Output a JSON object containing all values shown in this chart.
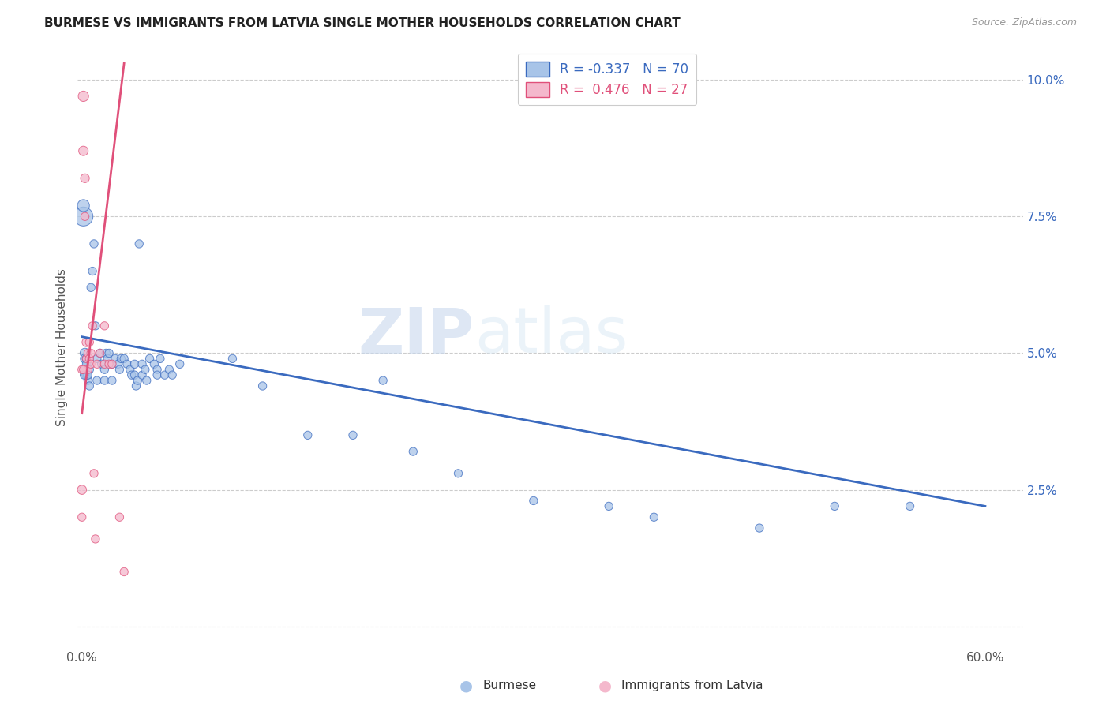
{
  "title": "BURMESE VS IMMIGRANTS FROM LATVIA SINGLE MOTHER HOUSEHOLDS CORRELATION CHART",
  "source": "Source: ZipAtlas.com",
  "ylabel": "Single Mother Households",
  "blue_color": "#a8c4e8",
  "pink_color": "#f4b8cc",
  "blue_line_color": "#3a6abf",
  "pink_line_color": "#e0507a",
  "watermark_zip": "ZIP",
  "watermark_atlas": "atlas",
  "blue_x": [
    0.001,
    0.001,
    0.002,
    0.002,
    0.002,
    0.003,
    0.003,
    0.003,
    0.004,
    0.004,
    0.005,
    0.005,
    0.006,
    0.007,
    0.008,
    0.009,
    0.01,
    0.01,
    0.012,
    0.013,
    0.015,
    0.015,
    0.016,
    0.017,
    0.018,
    0.02,
    0.02,
    0.022,
    0.024,
    0.025,
    0.026,
    0.028,
    0.03,
    0.032,
    0.033,
    0.035,
    0.035,
    0.036,
    0.037,
    0.038,
    0.04,
    0.04,
    0.042,
    0.043,
    0.045,
    0.048,
    0.05,
    0.05,
    0.052,
    0.055,
    0.058,
    0.06,
    0.065,
    0.1,
    0.12,
    0.15,
    0.18,
    0.2,
    0.22,
    0.25,
    0.3,
    0.35,
    0.38,
    0.45,
    0.5,
    0.55,
    0.0025,
    0.0035,
    0.004,
    0.0015
  ],
  "blue_y": [
    0.075,
    0.077,
    0.05,
    0.049,
    0.047,
    0.049,
    0.048,
    0.046,
    0.048,
    0.045,
    0.047,
    0.044,
    0.062,
    0.065,
    0.07,
    0.055,
    0.049,
    0.045,
    0.05,
    0.048,
    0.047,
    0.045,
    0.05,
    0.049,
    0.05,
    0.048,
    0.045,
    0.049,
    0.048,
    0.047,
    0.049,
    0.049,
    0.048,
    0.047,
    0.046,
    0.048,
    0.046,
    0.044,
    0.045,
    0.07,
    0.048,
    0.046,
    0.047,
    0.045,
    0.049,
    0.048,
    0.047,
    0.046,
    0.049,
    0.046,
    0.047,
    0.046,
    0.048,
    0.049,
    0.044,
    0.035,
    0.035,
    0.045,
    0.032,
    0.028,
    0.023,
    0.022,
    0.02,
    0.018,
    0.022,
    0.022,
    0.046,
    0.046,
    0.046,
    0.046
  ],
  "blue_sizes": [
    300,
    120,
    80,
    70,
    60,
    60,
    55,
    55,
    55,
    55,
    55,
    55,
    55,
    55,
    55,
    55,
    55,
    55,
    55,
    55,
    55,
    55,
    55,
    55,
    55,
    55,
    55,
    55,
    55,
    55,
    55,
    55,
    55,
    55,
    55,
    55,
    55,
    55,
    55,
    55,
    55,
    55,
    55,
    55,
    55,
    55,
    55,
    55,
    55,
    55,
    55,
    55,
    55,
    55,
    55,
    55,
    55,
    55,
    55,
    55,
    55,
    55,
    55,
    55,
    55,
    55,
    55,
    55,
    55,
    55
  ],
  "pink_x": [
    0.0,
    0.0,
    0.001,
    0.001,
    0.002,
    0.002,
    0.003,
    0.003,
    0.004,
    0.004,
    0.005,
    0.005,
    0.006,
    0.006,
    0.007,
    0.008,
    0.009,
    0.01,
    0.012,
    0.015,
    0.015,
    0.018,
    0.02,
    0.025,
    0.028,
    0.0,
    0.001
  ],
  "pink_y": [
    0.025,
    0.02,
    0.097,
    0.087,
    0.082,
    0.075,
    0.052,
    0.049,
    0.05,
    0.047,
    0.052,
    0.049,
    0.05,
    0.048,
    0.055,
    0.028,
    0.016,
    0.048,
    0.05,
    0.048,
    0.055,
    0.048,
    0.048,
    0.02,
    0.01,
    0.047,
    0.047
  ],
  "pink_sizes": [
    70,
    55,
    90,
    75,
    65,
    55,
    65,
    55,
    55,
    55,
    55,
    55,
    55,
    55,
    55,
    55,
    55,
    55,
    55,
    55,
    55,
    55,
    55,
    55,
    55,
    55,
    55
  ],
  "blue_trend_x0": 0.0,
  "blue_trend_y0": 0.053,
  "blue_trend_x1": 0.6,
  "blue_trend_y1": 0.022,
  "pink_trend_x0": 0.0,
  "pink_trend_y0": 0.039,
  "pink_trend_x1": 0.028,
  "pink_trend_y1": 0.103,
  "xlim_min": -0.003,
  "xlim_max": 0.625,
  "ylim_min": -0.004,
  "ylim_max": 0.106,
  "x_tick_positions": [
    0.0,
    0.1,
    0.2,
    0.3,
    0.4,
    0.5,
    0.6
  ],
  "x_tick_labels": [
    "0.0%",
    "",
    "",
    "",
    "",
    "",
    "60.0%"
  ],
  "y_tick_positions": [
    0.0,
    0.025,
    0.05,
    0.075,
    0.1
  ],
  "y_tick_labels": [
    "",
    "2.5%",
    "5.0%",
    "7.5%",
    "10.0%"
  ],
  "legend_blue_text": "R = -0.337   N = 70",
  "legend_pink_text": "R =  0.476   N = 27",
  "bottom_label_blue": "Burmese",
  "bottom_label_pink": "Immigrants from Latvia"
}
